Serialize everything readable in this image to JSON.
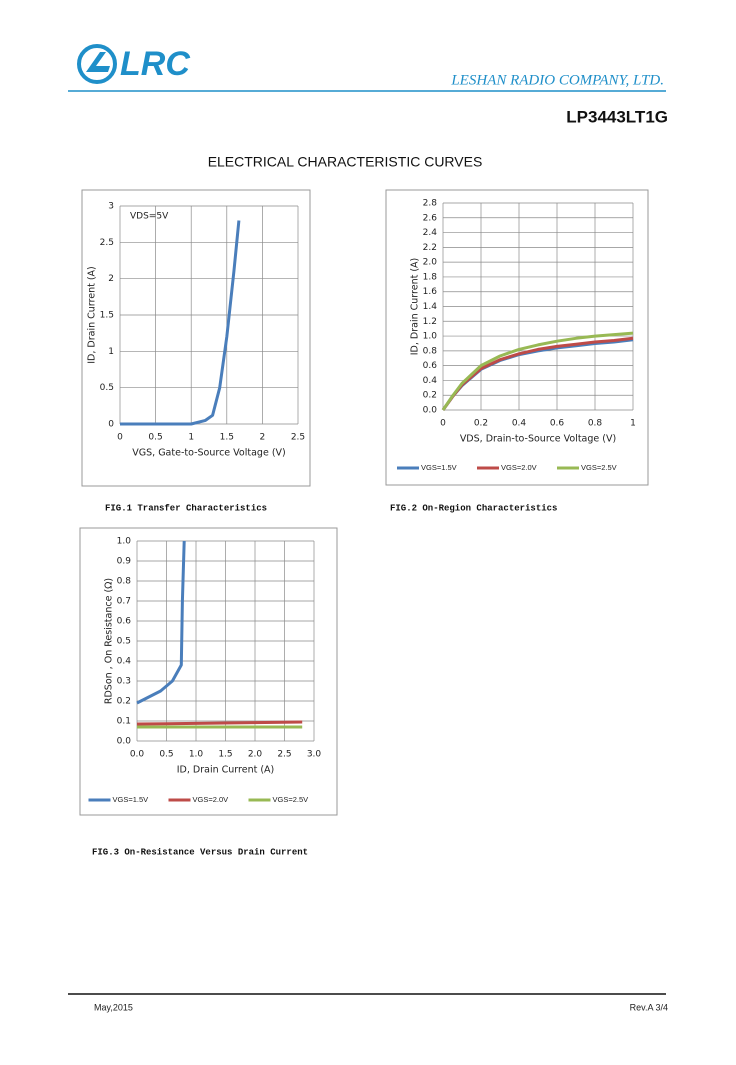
{
  "header": {
    "logo": "LRC",
    "company": "LESHAN RADIO COMPANY, LTD.",
    "part_number": "LP3443LT1G",
    "section_title": "ELECTRICAL CHARACTERISTIC CURVES"
  },
  "footer": {
    "date": "May,2015",
    "revision": "Rev.A 3/4"
  },
  "chart_data": [
    {
      "type": "line",
      "caption": "FIG.1 Transfer Characteristics",
      "annotation": "VDS=5V",
      "x_label": "VGS, Gate-to-Source Voltage (V)",
      "y_label": "ID, Drain Current (A)",
      "x": [
        0,
        0.5,
        1,
        1.2,
        1.3,
        1.4,
        1.5,
        1.6,
        1.67
      ],
      "values": [
        0,
        0,
        0,
        0.05,
        0.12,
        0.5,
        1.2,
        2.1,
        2.8
      ],
      "color": "#4a7ebb",
      "xlim": [
        0,
        2.5
      ],
      "xticks": [
        0,
        0.5,
        1,
        1.5,
        2,
        2.5
      ],
      "ylim": [
        0,
        3
      ],
      "yticks": [
        0,
        0.5,
        1,
        1.5,
        2,
        2.5,
        3
      ],
      "grid": true
    },
    {
      "type": "line",
      "caption": "FIG.2 On-Region Characteristics",
      "x_label": "VDS, Drain-to-Source Voltage (V)",
      "y_label": "ID, Drain Current (A)",
      "x": [
        0,
        0.05,
        0.1,
        0.2,
        0.3,
        0.4,
        0.5,
        0.6,
        0.7,
        0.8,
        0.9,
        1
      ],
      "series": [
        {
          "name": "VGS=1.5V",
          "color": "#4a7ebb",
          "values": [
            0,
            0.18,
            0.33,
            0.55,
            0.67,
            0.75,
            0.8,
            0.84,
            0.87,
            0.9,
            0.92,
            0.95
          ]
        },
        {
          "name": "VGS=2.0V",
          "color": "#be4b48",
          "values": [
            0,
            0.18,
            0.34,
            0.56,
            0.68,
            0.76,
            0.82,
            0.86,
            0.89,
            0.92,
            0.94,
            0.97
          ]
        },
        {
          "name": "VGS=2.5V",
          "color": "#98b954",
          "values": [
            0,
            0.19,
            0.36,
            0.6,
            0.73,
            0.82,
            0.88,
            0.93,
            0.97,
            1.0,
            1.02,
            1.04
          ]
        }
      ],
      "xlim": [
        0,
        1
      ],
      "xticks": [
        0,
        0.2,
        0.4,
        0.6,
        0.8,
        1
      ],
      "ylim": [
        0,
        2.8
      ],
      "yticks": [
        {
          "value": 0,
          "label": "0.0"
        },
        0.2,
        0.4,
        0.6,
        0.8,
        {
          "value": 1,
          "label": "1.0"
        },
        1.2,
        1.4,
        1.6,
        1.8,
        {
          "value": 2,
          "label": "2.0"
        },
        2.2,
        2.4,
        2.6,
        2.8
      ],
      "grid": true,
      "legend": "bottom"
    },
    {
      "type": "line",
      "caption": "FIG.3 On-Resistance Versus Drain Current",
      "x_label": "ID, Drain Current (A)",
      "y_label": "RDSon , On Resistance (Ω)",
      "series": [
        {
          "name": "VGS=1.5V",
          "color": "#4a7ebb",
          "x": [
            0,
            0.2,
            0.4,
            0.6,
            0.75,
            0.77,
            0.8
          ],
          "values": [
            0.19,
            0.22,
            0.25,
            0.3,
            0.38,
            0.7,
            1.0
          ]
        },
        {
          "name": "VGS=2.0V",
          "color": "#be4b48",
          "x": [
            0,
            0.5,
            1,
            1.5,
            2,
            2.5,
            2.8
          ],
          "values": [
            0.085,
            0.086,
            0.088,
            0.09,
            0.092,
            0.094,
            0.095
          ]
        },
        {
          "name": "VGS=2.5V",
          "color": "#98b954",
          "x": [
            0,
            0.5,
            1,
            1.5,
            2,
            2.5,
            2.8
          ],
          "values": [
            0.07,
            0.07,
            0.07,
            0.07,
            0.07,
            0.07,
            0.07
          ]
        }
      ],
      "xlim": [
        0,
        3
      ],
      "xticks": [
        {
          "value": 0,
          "label": "0.0"
        },
        0.5,
        {
          "value": 1,
          "label": "1.0"
        },
        1.5,
        {
          "value": 2,
          "label": "2.0"
        },
        2.5,
        {
          "value": 3,
          "label": "3.0"
        }
      ],
      "ylim": [
        0,
        1
      ],
      "yticks": [
        {
          "value": 0,
          "label": "0.0"
        },
        0.1,
        0.2,
        0.3,
        0.4,
        0.5,
        0.6,
        0.7,
        0.8,
        0.9,
        {
          "value": 1,
          "label": "1.0"
        }
      ],
      "grid": true,
      "legend": "bottom"
    }
  ]
}
